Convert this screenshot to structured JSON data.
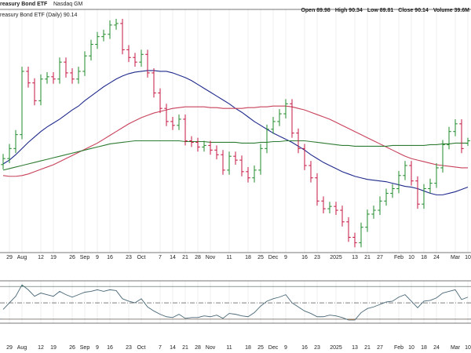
{
  "chart_data": {
    "type": "ohlc",
    "title": "reasury Bond ETF",
    "exchange": "Nasdaq GM",
    "legend_text": "reasury Bond ETF (Daily) 90.14",
    "quote": [
      "Open 89.98",
      "High 90.34",
      "Low 89.81",
      "Close 90.14",
      "Volume 39.6M"
    ],
    "categories": [
      null,
      "29",
      null,
      "Aug",
      null,
      null,
      "12",
      null,
      "19",
      null,
      null,
      "26",
      null,
      "Sep",
      null,
      "9",
      null,
      "16",
      null,
      null,
      "23",
      null,
      "Oct",
      null,
      null,
      "7",
      null,
      "14",
      null,
      "21",
      null,
      "28",
      null,
      "Nov",
      null,
      null,
      "11",
      null,
      null,
      "18",
      null,
      "25",
      null,
      "Dec",
      null,
      "9",
      null,
      null,
      "16",
      null,
      "23",
      null,
      null,
      "2025",
      null,
      null,
      "13",
      null,
      "21",
      null,
      "27",
      null,
      null,
      "Feb",
      null,
      "10",
      null,
      "18",
      null,
      "24",
      null,
      null,
      "Mar",
      null,
      "10"
    ],
    "open": [
      88.6,
      88.99,
      89.64,
      90.54,
      94.64,
      93.89,
      92.74,
      94.14,
      94.29,
      94.14,
      95.24,
      94.54,
      94.14,
      94.64,
      95.64,
      96.39,
      96.89,
      97.04,
      97.64,
      97.74,
      96.04,
      95.54,
      95.24,
      95.74,
      94.54,
      93.24,
      92.24,
      91.39,
      91.14,
      91.54,
      90.14,
      90.04,
      89.74,
      89.84,
      89.54,
      89.24,
      88.24,
      89.14,
      88.89,
      88.14,
      87.74,
      88.24,
      89.64,
      90.89,
      91.39,
      91.89,
      92.54,
      90.64,
      89.64,
      88.54,
      87.74,
      86.24,
      85.74,
      85.89,
      85.64,
      84.89,
      83.89,
      83.54,
      84.54,
      85.39,
      85.64,
      86.24,
      86.74,
      87.04,
      87.89,
      88.54,
      87.54,
      86.04,
      87.04,
      87.39,
      88.39,
      89.89,
      90.74,
      91.24,
      89.98
    ],
    "high": [
      89.29,
      89.94,
      90.84,
      94.94,
      94.94,
      94.19,
      94.44,
      94.59,
      94.59,
      95.54,
      95.54,
      94.84,
      94.94,
      95.94,
      96.69,
      97.19,
      97.34,
      97.94,
      98.04,
      98.04,
      96.34,
      95.84,
      96.04,
      96.04,
      94.84,
      93.54,
      92.54,
      91.69,
      91.84,
      91.84,
      90.44,
      90.34,
      90.14,
      90.14,
      89.84,
      89.54,
      89.44,
      89.44,
      89.19,
      88.44,
      88.54,
      89.94,
      91.19,
      91.69,
      92.19,
      92.84,
      92.84,
      90.94,
      89.94,
      88.84,
      88.04,
      86.54,
      86.19,
      86.19,
      85.94,
      85.19,
      84.19,
      84.84,
      85.69,
      85.94,
      86.54,
      87.04,
      87.34,
      88.19,
      88.84,
      88.84,
      87.84,
      87.34,
      87.69,
      88.69,
      90.19,
      91.04,
      91.54,
      91.54,
      90.34
    ],
    "low": [
      88.3,
      88.69,
      89.34,
      90.24,
      93.59,
      92.44,
      92.44,
      93.84,
      93.84,
      93.84,
      94.24,
      93.84,
      93.84,
      94.34,
      95.34,
      96.09,
      96.59,
      96.74,
      97.34,
      95.74,
      95.24,
      94.94,
      94.94,
      94.24,
      92.94,
      91.94,
      91.09,
      90.84,
      90.84,
      89.84,
      89.74,
      89.44,
      89.44,
      89.24,
      88.94,
      87.94,
      87.94,
      88.59,
      87.84,
      87.44,
      87.44,
      87.94,
      89.34,
      90.59,
      91.09,
      91.59,
      90.34,
      89.34,
      88.24,
      87.44,
      85.94,
      85.44,
      85.44,
      85.34,
      84.59,
      83.59,
      83.24,
      83.24,
      84.24,
      85.09,
      85.34,
      85.94,
      86.44,
      86.74,
      87.59,
      87.24,
      85.74,
      85.74,
      86.74,
      87.09,
      88.09,
      89.59,
      90.44,
      89.34,
      89.81
    ],
    "close": [
      88.99,
      89.64,
      90.54,
      94.64,
      93.89,
      92.74,
      94.14,
      94.29,
      94.14,
      95.24,
      94.54,
      94.14,
      94.64,
      95.64,
      96.39,
      96.89,
      97.04,
      97.64,
      97.74,
      96.04,
      95.54,
      95.24,
      95.74,
      94.54,
      93.24,
      92.24,
      91.39,
      91.14,
      91.54,
      90.14,
      90.04,
      89.74,
      89.84,
      89.54,
      89.24,
      88.24,
      89.14,
      88.89,
      88.14,
      87.74,
      88.24,
      89.64,
      90.89,
      91.39,
      91.89,
      92.54,
      90.64,
      89.64,
      88.54,
      87.74,
      86.24,
      85.74,
      85.89,
      85.64,
      84.89,
      83.89,
      83.54,
      84.54,
      85.39,
      85.64,
      86.24,
      86.74,
      87.04,
      87.89,
      88.54,
      87.54,
      86.04,
      87.04,
      87.39,
      88.39,
      89.89,
      90.74,
      91.24,
      89.64,
      90.14
    ],
    "up_color": "#1f8a2a",
    "down_color": "#c4163f",
    "series": [
      {
        "type": "line",
        "color": "#1f2a8c",
        "values": [
          88.64,
          88.89,
          89.24,
          89.64,
          90.04,
          90.39,
          90.74,
          91.04,
          91.29,
          91.54,
          91.84,
          92.14,
          92.39,
          92.74,
          93.04,
          93.34,
          93.64,
          93.89,
          94.14,
          94.34,
          94.49,
          94.59,
          94.64,
          94.69,
          94.69,
          94.64,
          94.64,
          94.54,
          94.39,
          94.24,
          94.04,
          93.79,
          93.54,
          93.29,
          93.04,
          92.79,
          92.54,
          92.24,
          91.99,
          91.69,
          91.39,
          91.14,
          90.89,
          90.64,
          90.44,
          90.24,
          90.04,
          89.79,
          89.54,
          89.24,
          88.99,
          88.74,
          88.54,
          88.34,
          88.14,
          87.99,
          87.84,
          87.74,
          87.64,
          87.59,
          87.54,
          87.49,
          87.39,
          87.29,
          87.19,
          87.14,
          87.04,
          86.89,
          86.74,
          86.64,
          86.64,
          86.74,
          86.84,
          86.99,
          87.14
        ]
      },
      {
        "type": "line",
        "color": "#c8415a",
        "values": [
          87.89,
          87.84,
          87.84,
          87.89,
          87.99,
          88.14,
          88.29,
          88.44,
          88.59,
          88.79,
          88.99,
          89.19,
          89.39,
          89.59,
          89.79,
          89.99,
          90.24,
          90.49,
          90.74,
          90.99,
          91.24,
          91.44,
          91.64,
          91.79,
          91.94,
          92.04,
          92.14,
          92.24,
          92.29,
          92.34,
          92.34,
          92.34,
          92.34,
          92.29,
          92.29,
          92.24,
          92.24,
          92.24,
          92.24,
          92.29,
          92.29,
          92.34,
          92.34,
          92.39,
          92.39,
          92.39,
          92.34,
          92.24,
          92.14,
          91.99,
          91.84,
          91.69,
          91.54,
          91.34,
          91.14,
          90.94,
          90.74,
          90.54,
          90.34,
          90.14,
          89.94,
          89.74,
          89.54,
          89.34,
          89.14,
          88.99,
          88.89,
          88.79,
          88.69,
          88.59,
          88.54,
          88.49,
          88.44,
          88.39,
          88.39
        ]
      },
      {
        "type": "line",
        "color": "#2e7d32",
        "values": [
          88.24,
          88.34,
          88.44,
          88.54,
          88.64,
          88.74,
          88.84,
          88.94,
          89.04,
          89.14,
          89.24,
          89.34,
          89.44,
          89.54,
          89.64,
          89.74,
          89.84,
          89.94,
          89.99,
          90.04,
          90.09,
          90.14,
          90.14,
          90.14,
          90.14,
          90.14,
          90.14,
          90.14,
          90.14,
          90.09,
          90.09,
          90.09,
          90.09,
          90.04,
          90.04,
          90.04,
          90.04,
          90.04,
          89.99,
          89.99,
          89.99,
          90.04,
          90.04,
          90.09,
          90.09,
          90.14,
          90.14,
          90.14,
          90.14,
          90.09,
          90.04,
          89.99,
          89.94,
          89.89,
          89.84,
          89.84,
          89.79,
          89.79,
          89.79,
          89.79,
          89.79,
          89.79,
          89.84,
          89.84,
          89.84,
          89.84,
          89.84,
          89.84,
          89.89,
          89.89,
          89.94,
          89.94,
          89.99,
          89.99,
          89.99
        ]
      }
    ],
    "ylim": [
      83,
      98.5
    ],
    "grid": true,
    "rsi": {
      "color": "#4a6878",
      "over_color": "#2e8b57",
      "under_color": "#e8953a",
      "ylim": [
        27,
        75
      ],
      "yticks": [
        30,
        50,
        70
      ],
      "values": [
        42,
        50,
        58,
        72,
        66,
        58,
        62,
        60,
        58,
        64,
        60,
        57,
        60,
        63,
        64,
        66,
        64,
        66,
        65,
        55,
        52,
        50,
        55,
        45,
        40,
        36,
        33,
        32,
        36,
        31,
        32,
        32,
        34,
        33,
        35,
        31,
        37,
        36,
        34,
        33,
        38,
        46,
        52,
        55,
        57,
        60,
        50,
        45,
        40,
        37,
        33,
        33,
        35,
        34,
        32,
        29,
        29,
        38,
        43,
        45,
        48,
        51,
        52,
        57,
        60,
        52,
        44,
        52,
        53,
        56,
        62,
        64,
        66,
        54,
        57
      ]
    }
  }
}
